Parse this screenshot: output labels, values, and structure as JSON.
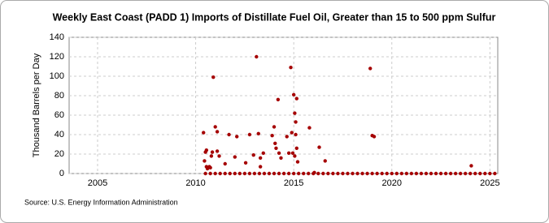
{
  "chart_data": {
    "type": "scatter",
    "title": "Weekly East Coast (PADD 1) Imports of Distillate Fuel Oil, Greater than 15 to 500 ppm Sulfur",
    "y_label": "Thousand Barrels per Day",
    "source": "Source: U.S. Energy Information Administration",
    "xlim": [
      2003.55,
      2025.4
    ],
    "ylim": [
      0,
      140
    ],
    "xticks": [
      2005,
      2010,
      2015,
      2020,
      2025
    ],
    "yticks": [
      0,
      20,
      40,
      60,
      80,
      100,
      120,
      140
    ],
    "grid": true,
    "series": [
      {
        "color": "#a50000",
        "x": [
          2010.4,
          2010.45,
          2010.5,
          2010.55,
          2010.55,
          2010.6,
          2010.7,
          2010.75,
          2010.8,
          2010.85,
          2010.9,
          2011.0,
          2011.1,
          2011.1,
          2011.2,
          2011.5,
          2011.7,
          2012.0,
          2012.1,
          2012.55,
          2012.75,
          2012.95,
          2013.1,
          2013.2,
          2013.3,
          2013.3,
          2013.45,
          2013.9,
          2014.0,
          2014.05,
          2014.1,
          2014.2,
          2014.25,
          2014.35,
          2014.65,
          2014.75,
          2014.85,
          2014.9,
          2014.95,
          2015.0,
          2015.05,
          2015.1,
          2015.15,
          2015.1,
          2015.05,
          2015.15,
          2015.2,
          2015.8,
          2016.05,
          2016.3,
          2016.6,
          2018.9,
          2019.0,
          2019.1,
          2024.05,
          2010.5,
          2010.75,
          2011,
          2011.25,
          2011.5,
          2011.75,
          2012,
          2012.25,
          2012.5,
          2012.75,
          2013,
          2013.25,
          2013.5,
          2013.75,
          2014,
          2014.25,
          2014.5,
          2014.75,
          2015,
          2015.25,
          2015.5,
          2015.75,
          2016,
          2016.25,
          2016.5,
          2016.75,
          2017,
          2017.25,
          2017.5,
          2017.75,
          2018,
          2018.25,
          2018.5,
          2018.75,
          2019,
          2019.25,
          2019.5,
          2019.75,
          2020,
          2020.25,
          2020.5,
          2020.75,
          2021,
          2021.25,
          2021.5,
          2021.75,
          2022,
          2022.25,
          2022.5,
          2022.75,
          2023,
          2023.25,
          2023.5,
          2023.75,
          2024,
          2024.25,
          2024.5,
          2024.75,
          2025,
          2025.25
        ],
        "values": [
          42,
          13,
          22,
          24,
          7,
          5,
          7,
          6,
          18,
          22,
          99,
          48,
          43,
          23,
          18,
          10,
          40,
          17,
          38,
          11,
          40,
          19,
          120,
          41,
          16,
          7,
          21,
          39,
          48,
          31,
          26,
          76,
          21,
          16,
          38,
          21,
          109,
          42,
          21,
          81,
          62,
          53,
          77,
          40,
          18,
          26,
          12,
          47,
          1,
          27,
          13,
          108,
          39,
          38,
          8,
          0,
          0,
          0,
          0,
          0,
          0,
          0,
          0,
          0,
          0,
          0,
          0,
          0,
          0,
          0,
          0,
          0,
          0,
          0,
          0,
          0,
          0,
          0,
          0,
          0,
          0,
          0,
          0,
          0,
          0,
          0,
          0,
          0,
          0,
          0,
          0,
          0,
          0,
          0,
          0,
          0,
          0,
          0,
          0,
          0,
          0,
          0,
          0,
          0,
          0,
          0,
          0,
          0,
          0,
          0,
          0,
          0,
          0,
          0,
          0
        ]
      }
    ]
  }
}
